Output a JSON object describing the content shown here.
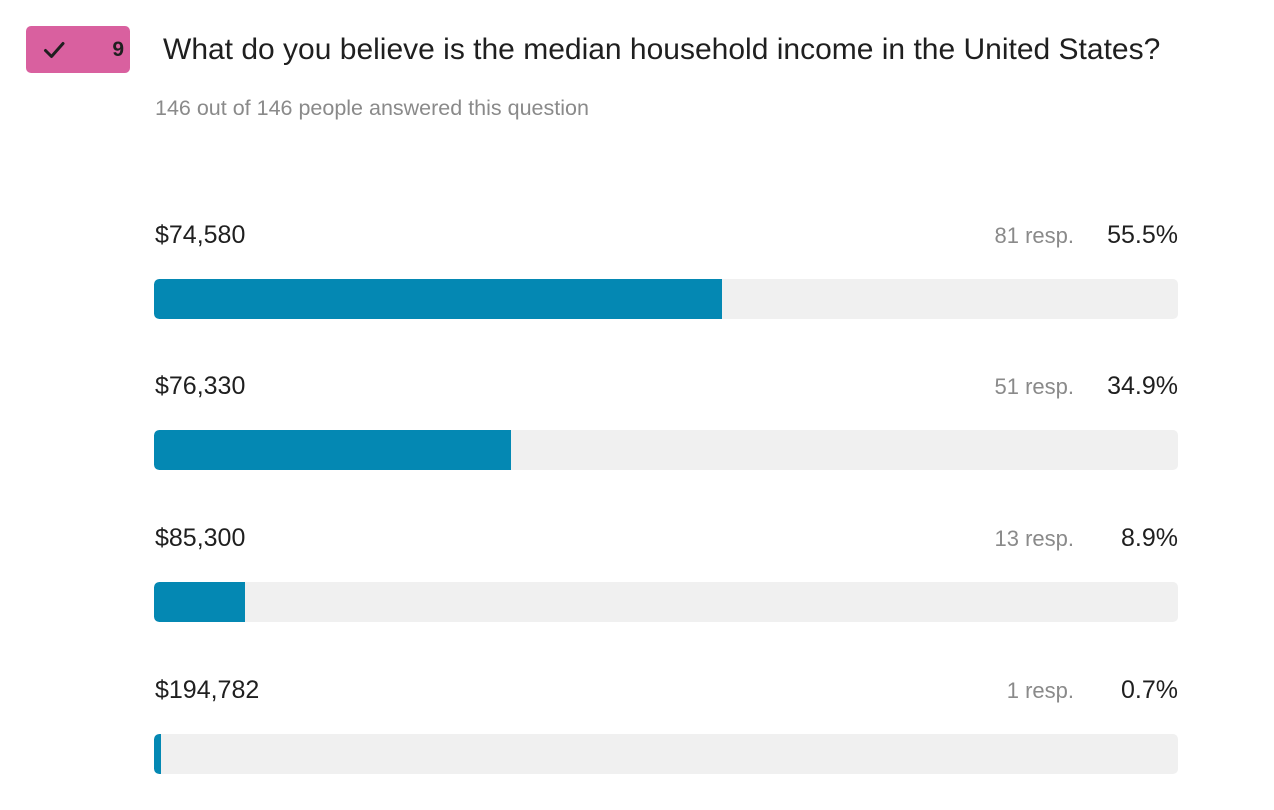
{
  "question": {
    "badge_number": "9",
    "badge_icon": "check-icon",
    "badge_color": "#d9609f",
    "title": "What do you believe is the median household income in the United States?",
    "answered_text": "146 out of 146 people answered this question"
  },
  "bar_color": "#0488b3",
  "track_color": "#f0f0f0",
  "options": [
    {
      "label": "$74,580",
      "responses": "81 resp.",
      "percent_text": "55.5%",
      "percent": 55.5
    },
    {
      "label": "$76,330",
      "responses": "51 resp.",
      "percent_text": "34.9%",
      "percent": 34.9
    },
    {
      "label": "$85,300",
      "responses": "13 resp.",
      "percent_text": "8.9%",
      "percent": 8.9
    },
    {
      "label": "$194,782",
      "responses": "1 resp.",
      "percent_text": "0.7%",
      "percent": 0.7
    }
  ]
}
